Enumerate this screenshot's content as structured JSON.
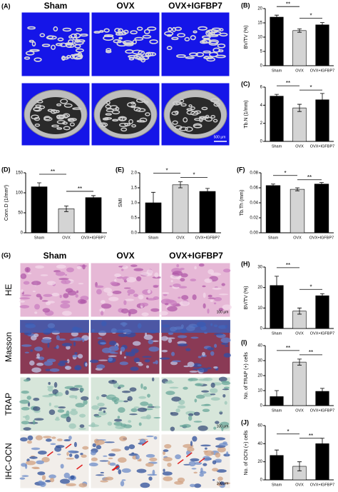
{
  "figure": {
    "panel_A": {
      "label": "(A)",
      "columns": [
        "Sham",
        "OVX",
        "OVX+IGFBP7"
      ],
      "scale_bar": "500 μm"
    },
    "panel_G": {
      "label": "(G)",
      "columns": [
        "Sham",
        "OVX",
        "OVX+IGFBP7"
      ],
      "rows": [
        "HE",
        "Masson",
        "TRAP",
        "IHC-OCN"
      ],
      "scale_bar": "100 μm"
    }
  },
  "chart_data": [
    {
      "type": "bar",
      "panel": "(B)",
      "ylabel": "BV/TV (%)",
      "categories": [
        "Sham",
        "OVX",
        "OVX+IGFBP7"
      ],
      "values": [
        17,
        12.3,
        14.3
      ],
      "errors": [
        0.7,
        0.6,
        0.8
      ],
      "colors": [
        "#000000",
        "#d4d4d4",
        "#000000"
      ],
      "ylim": [
        0,
        20
      ],
      "yticks": [
        0,
        5,
        10,
        15,
        20
      ],
      "significance": [
        {
          "from": 0,
          "to": 1,
          "label": "**"
        },
        {
          "from": 1,
          "to": 2,
          "label": "*"
        }
      ]
    },
    {
      "type": "bar",
      "panel": "(C)",
      "ylabel": "Tb.N (1/mm)",
      "categories": [
        "Sham",
        "OVX",
        "OVX+IGFBP7"
      ],
      "values": [
        5.0,
        3.7,
        4.6
      ],
      "errors": [
        0.2,
        0.4,
        0.7
      ],
      "colors": [
        "#000000",
        "#d4d4d4",
        "#000000"
      ],
      "ylim": [
        0,
        6
      ],
      "yticks": [
        0,
        2,
        4,
        6
      ],
      "significance": [
        {
          "from": 0,
          "to": 1,
          "label": "**"
        },
        {
          "from": 1,
          "to": 2,
          "label": "*"
        }
      ]
    },
    {
      "type": "bar",
      "panel": "(D)",
      "ylabel": "Conn.D (1/mm³)",
      "categories": [
        "Sham",
        "OVX",
        "OVX+IGFBP7"
      ],
      "values": [
        115,
        60,
        88
      ],
      "errors": [
        10,
        7,
        5
      ],
      "colors": [
        "#000000",
        "#d4d4d4",
        "#000000"
      ],
      "ylim": [
        0,
        150
      ],
      "yticks": [
        0,
        50,
        100,
        150
      ],
      "significance": [
        {
          "from": 0,
          "to": 1,
          "label": "**"
        },
        {
          "from": 1,
          "to": 2,
          "label": "**"
        }
      ]
    },
    {
      "type": "bar",
      "panel": "(E)",
      "ylabel": "SMI",
      "categories": [
        "Sham",
        "OVX",
        "OVX+IGFBP7"
      ],
      "values": [
        1.0,
        1.6,
        1.38
      ],
      "errors": [
        0.35,
        0.1,
        0.1
      ],
      "colors": [
        "#000000",
        "#d4d4d4",
        "#000000"
      ],
      "ylim": [
        0,
        2
      ],
      "yticks": [
        {
          "value": 0,
          "label": "0.0"
        },
        {
          "value": 0.5,
          "label": "0.5"
        },
        {
          "value": 1,
          "label": "1.0"
        },
        {
          "value": 1.5,
          "label": "1.5"
        },
        {
          "value": 2,
          "label": "2.0"
        }
      ],
      "significance": [
        {
          "from": 0,
          "to": 1,
          "label": "*"
        },
        {
          "from": 1,
          "to": 2,
          "label": "*"
        }
      ]
    },
    {
      "type": "bar",
      "panel": "(F)",
      "ylabel": "Tb.Th (mm)",
      "categories": [
        "Sham",
        "OVX",
        "OVX+IGFBP7"
      ],
      "values": [
        0.063,
        0.058,
        0.065
      ],
      "errors": [
        0.002,
        0.002,
        0.002
      ],
      "colors": [
        "#000000",
        "#d4d4d4",
        "#000000"
      ],
      "ylim": [
        0,
        0.08
      ],
      "yticks": [
        {
          "value": 0,
          "label": "0.00"
        },
        {
          "value": 0.02,
          "label": "0.02"
        },
        {
          "value": 0.04,
          "label": "0.04"
        },
        {
          "value": 0.06,
          "label": "0.06"
        },
        {
          "value": 0.08,
          "label": "0.08"
        }
      ],
      "significance": [
        {
          "from": 0,
          "to": 1,
          "label": "*"
        },
        {
          "from": 1,
          "to": 2,
          "label": "**"
        }
      ]
    },
    {
      "type": "bar",
      "panel": "(H)",
      "ylabel": "BV/TV (%)",
      "categories": [
        "Sham",
        "OVX",
        "OVX+IGFBP7"
      ],
      "values": [
        21,
        8.5,
        16
      ],
      "errors": [
        4.5,
        1.5,
        1
      ],
      "colors": [
        "#000000",
        "#d4d4d4",
        "#000000"
      ],
      "ylim": [
        0,
        30
      ],
      "yticks": [
        0,
        10,
        20,
        30
      ],
      "significance": [
        {
          "from": 0,
          "to": 1,
          "label": "**"
        },
        {
          "from": 1,
          "to": 2,
          "label": "*"
        }
      ]
    },
    {
      "type": "bar",
      "panel": "(I)",
      "ylabel": "No. of TRAP (+) cells",
      "categories": [
        "Sham",
        "OVX",
        "OVX+IGFBP7"
      ],
      "values": [
        6,
        29,
        9.5
      ],
      "errors": [
        4,
        2,
        2
      ],
      "colors": [
        "#000000",
        "#d4d4d4",
        "#000000"
      ],
      "ylim": [
        0,
        40
      ],
      "yticks": [
        0,
        10,
        20,
        30,
        40
      ],
      "significance": [
        {
          "from": 0,
          "to": 1,
          "label": "**"
        },
        {
          "from": 1,
          "to": 2,
          "label": "**"
        }
      ]
    },
    {
      "type": "bar",
      "panel": "(J)",
      "ylabel": "No. of OCN (+) cells",
      "categories": [
        "Sham",
        "OVX",
        "OVX+IGFBP7"
      ],
      "values": [
        27,
        15,
        40
      ],
      "errors": [
        6,
        5,
        6
      ],
      "colors": [
        "#000000",
        "#d4d4d4",
        "#000000"
      ],
      "ylim": [
        0,
        60
      ],
      "yticks": [
        0,
        20,
        40,
        60
      ],
      "significance": [
        {
          "from": 0,
          "to": 1,
          "label": "*"
        },
        {
          "from": 1,
          "to": 2,
          "label": "**"
        }
      ]
    }
  ]
}
